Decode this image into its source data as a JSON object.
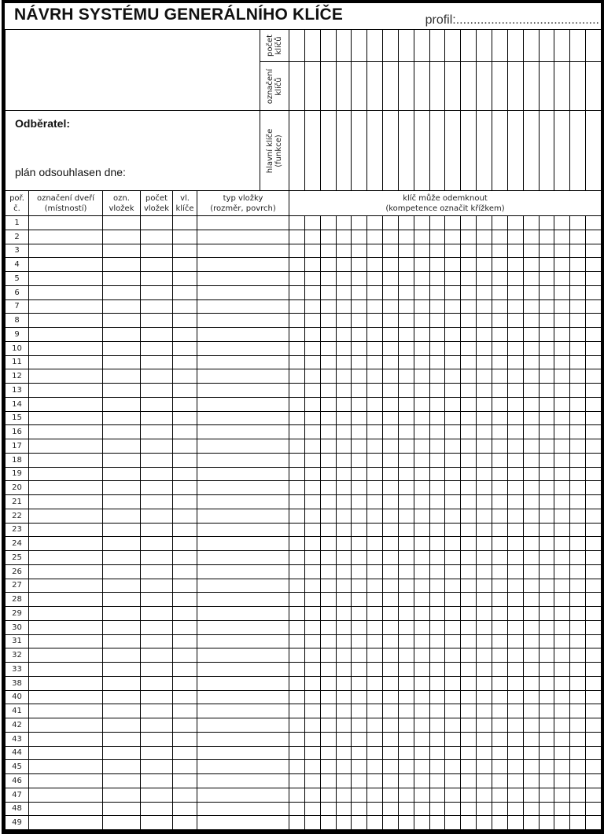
{
  "title": "NÁVRH SYSTÉMU GENERÁLNÍHO KLÍČE",
  "profil": "profil:.........................................",
  "top_section": {
    "row_labels": [
      {
        "line1": "počet",
        "line2": "klíčů"
      },
      {
        "line1": "označení",
        "line2": "klíčů"
      },
      {
        "line1": "hlavní klíče",
        "line2": "(funkce)"
      }
    ],
    "customer_label": "Odběratel:",
    "plan_label": "plán odsouhlasen dne:"
  },
  "table": {
    "headers": [
      {
        "line1": "poř.",
        "line2": "č."
      },
      {
        "line1": "označení dveří",
        "line2": "(místností)"
      },
      {
        "line1": "ozn.",
        "line2": "vložek"
      },
      {
        "line1": "počet",
        "line2": "vložek"
      },
      {
        "line1": "vl.",
        "line2": "klíče"
      },
      {
        "line1": "typ vložky",
        "line2": "(rozměr, povrch)"
      },
      {
        "line1": "klíč může odemknout",
        "line2": "(kompetence označit křížkem)"
      }
    ],
    "key_column_count": 20,
    "row_numbers": [
      "1",
      "2",
      "3",
      "4",
      "5",
      "6",
      "7",
      "8",
      "9",
      "10",
      "11",
      "12",
      "13",
      "14",
      "15",
      "16",
      "17",
      "18",
      "19",
      "20",
      "21",
      "22",
      "23",
      "24",
      "25",
      "26",
      "27",
      "28",
      "29",
      "30",
      "31",
      "32",
      "33",
      "38",
      "40",
      "41",
      "42",
      "43",
      "44",
      "45",
      "46",
      "47",
      "48",
      "49"
    ]
  }
}
